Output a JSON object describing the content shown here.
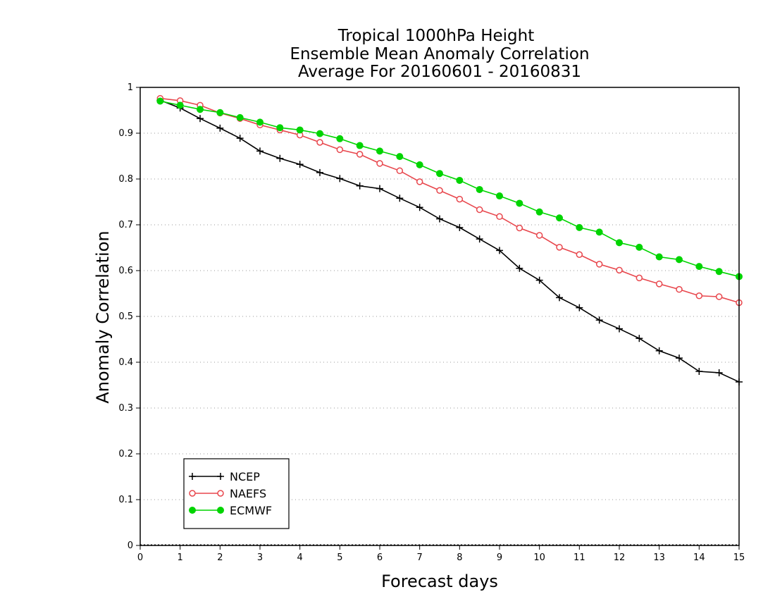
{
  "chart_data": {
    "type": "line",
    "title_lines": [
      "Tropical 1000hPa Height",
      "Ensemble Mean Anomaly Correlation",
      "Average For 20160601 - 20160831"
    ],
    "xlabel": "Forecast days",
    "ylabel": "Anomaly Correlation",
    "xlim": [
      0,
      15
    ],
    "ylim": [
      0,
      1
    ],
    "x_ticks": [
      0,
      1,
      2,
      3,
      4,
      5,
      6,
      7,
      8,
      9,
      10,
      11,
      12,
      13,
      14,
      15
    ],
    "x_tick_labels": [
      "0",
      "1",
      "2",
      "3",
      "4",
      "5",
      "6",
      "7",
      "8",
      "9",
      "10",
      "11",
      "12",
      "13",
      "14",
      "15"
    ],
    "y_ticks": [
      0,
      0.1,
      0.2,
      0.3,
      0.4,
      0.5,
      0.6,
      0.7,
      0.8,
      0.9,
      1
    ],
    "y_tick_labels": [
      "0",
      "0.1",
      "0.2",
      "0.3",
      "0.4",
      "0.5",
      "0.6",
      "0.7",
      "0.8",
      "0.9",
      "1"
    ],
    "grid": "horizontal dotted",
    "legend_position": "bottom-left",
    "x": [
      0.5,
      1,
      1.5,
      2,
      2.5,
      3,
      3.5,
      4,
      4.5,
      5,
      5.5,
      6,
      6.5,
      7,
      7.5,
      8,
      8.5,
      9,
      9.5,
      10,
      10.5,
      11,
      11.5,
      12,
      12.5,
      13,
      13.5,
      14,
      14.5,
      15
    ],
    "series": [
      {
        "name": "NCEP",
        "color": "#000000",
        "marker": "plus",
        "values": [
          0.972,
          0.955,
          0.932,
          0.911,
          0.889,
          0.861,
          0.845,
          0.832,
          0.814,
          0.801,
          0.785,
          0.779,
          0.758,
          0.738,
          0.713,
          0.694,
          0.669,
          0.644,
          0.605,
          0.579,
          0.541,
          0.519,
          0.492,
          0.473,
          0.452,
          0.425,
          0.409,
          0.38,
          0.377,
          0.357
        ]
      },
      {
        "name": "NAEFS",
        "color": "#e8474d",
        "marker": "open-circle",
        "values": [
          0.976,
          0.971,
          0.961,
          0.944,
          0.932,
          0.918,
          0.907,
          0.896,
          0.88,
          0.864,
          0.854,
          0.834,
          0.818,
          0.794,
          0.775,
          0.756,
          0.733,
          0.718,
          0.693,
          0.677,
          0.651,
          0.635,
          0.614,
          0.601,
          0.584,
          0.571,
          0.559,
          0.545,
          0.543,
          0.53
        ]
      },
      {
        "name": "ECMWF",
        "color": "#00d400",
        "marker": "filled-circle",
        "values": [
          0.97,
          0.961,
          0.952,
          0.945,
          0.934,
          0.924,
          0.912,
          0.907,
          0.899,
          0.888,
          0.873,
          0.861,
          0.849,
          0.831,
          0.812,
          0.797,
          0.777,
          0.763,
          0.747,
          0.728,
          0.715,
          0.694,
          0.684,
          0.661,
          0.651,
          0.63,
          0.624,
          0.609,
          0.598,
          0.587
        ]
      }
    ]
  }
}
